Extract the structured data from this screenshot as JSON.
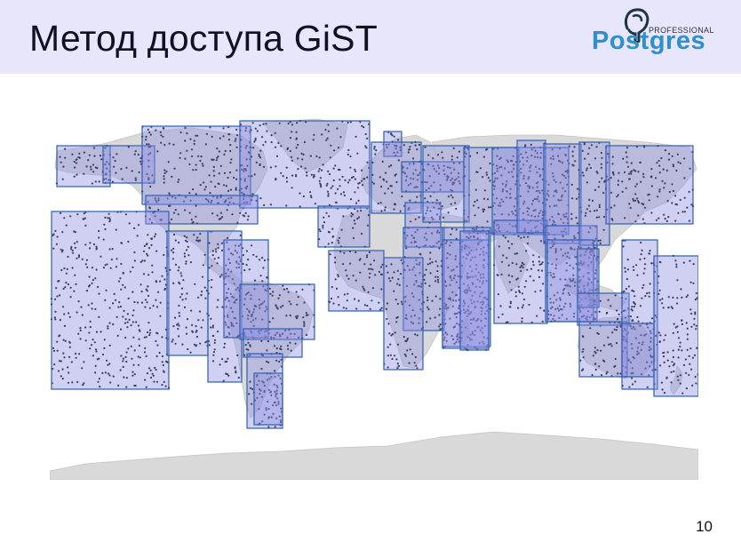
{
  "slide": {
    "title": "Метод доступа GiST",
    "page_number": "10"
  },
  "logo": {
    "brand": "Postgres",
    "tagline": "PROFESSIONAL",
    "icon": "elephant-icon",
    "color": "#2e8fcf"
  },
  "diagram": {
    "land_color": "#d9d9d9",
    "box_fill": "#8c8ee0",
    "box_stroke": "#2f5fb0",
    "point_color": "#000000"
  }
}
